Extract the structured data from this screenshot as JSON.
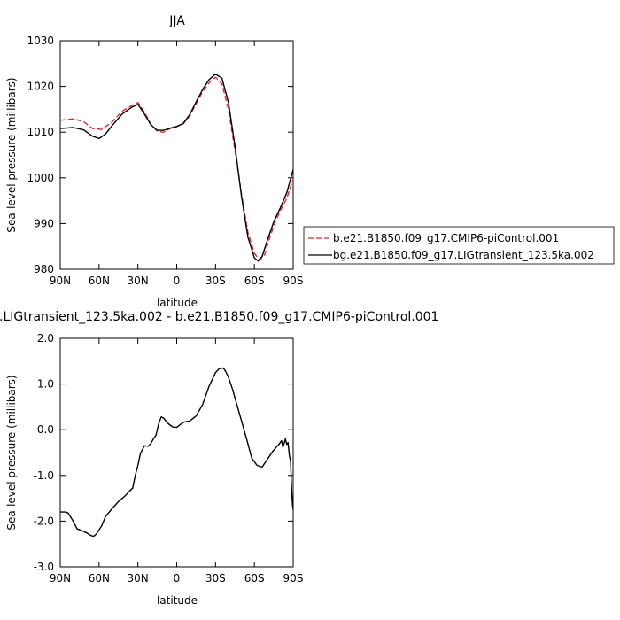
{
  "chart_data": [
    {
      "type": "line",
      "title": "JJA",
      "xlabel": "latitude",
      "ylabel": "Sea-level pressure (millibars)",
      "xlim": [
        90,
        -90
      ],
      "ylim": [
        980,
        1030
      ],
      "xticks": [
        90,
        60,
        30,
        0,
        -30,
        -60,
        -90
      ],
      "xticklabels": [
        "90N",
        "60N",
        "30N",
        "0",
        "30S",
        "60S",
        "90S"
      ],
      "yticks": [
        980,
        990,
        1000,
        1010,
        1020,
        1030
      ],
      "yticklabels": [
        "980",
        "990",
        "1000",
        "1010",
        "1020",
        "1030"
      ],
      "legend_position": "right",
      "series": [
        {
          "name": "b.e21.B1850.f09_g17.CMIP6-piControl.001",
          "color": "#e8262a",
          "dash": "dashed",
          "x": [
            90,
            80,
            72,
            65,
            58,
            50,
            42,
            35,
            30,
            25,
            20,
            15,
            10,
            5,
            0,
            -5,
            -10,
            -15,
            -20,
            -25,
            -30,
            -35,
            -40,
            -45,
            -50,
            -55,
            -60,
            -64,
            -68,
            -72,
            -76,
            -80,
            -85,
            -90
          ],
          "y": [
            1012.6,
            1012.9,
            1012.3,
            1010.8,
            1010.6,
            1012.2,
            1014.6,
            1015.8,
            1016.5,
            1014.4,
            1011.7,
            1010.2,
            1010.0,
            1010.8,
            1011.3,
            1011.8,
            1013.5,
            1016.2,
            1018.8,
            1020.8,
            1022.0,
            1020.6,
            1015.0,
            1006.0,
            996.5,
            988.0,
            983.5,
            982.0,
            983.2,
            987.0,
            990.2,
            992.8,
            995.5,
            999.8
          ]
        },
        {
          "name": "bg.e21.B1850.f09_g17.LIGtransient_123.5ka.002",
          "color": "#000000",
          "dash": "solid",
          "x": [
            90,
            80,
            72,
            65,
            60,
            55,
            50,
            42,
            35,
            30,
            25,
            20,
            15,
            10,
            5,
            0,
            -5,
            -10,
            -15,
            -20,
            -25,
            -30,
            -35,
            -40,
            -45,
            -50,
            -55,
            -60,
            -63,
            -66,
            -70,
            -75,
            -80,
            -85,
            -90
          ],
          "y": [
            1010.8,
            1011.0,
            1010.5,
            1009.1,
            1008.6,
            1009.6,
            1011.4,
            1014.0,
            1015.4,
            1016.1,
            1014.0,
            1011.6,
            1010.4,
            1010.4,
            1010.9,
            1011.2,
            1011.9,
            1013.8,
            1016.6,
            1019.3,
            1021.5,
            1022.7,
            1021.8,
            1016.5,
            1007.0,
            996.0,
            987.0,
            982.5,
            981.8,
            982.8,
            986.3,
            990.4,
            993.4,
            996.7,
            1001.8
          ]
        }
      ]
    },
    {
      "type": "line",
      "title": ".LIGtransient_123.5ka.002 - b.e21.B1850.f09_g17.CMIP6-piControl.001",
      "xlabel": "latitude",
      "ylabel": "Sea-level pressure (millibars)",
      "xlim": [
        90,
        -90
      ],
      "ylim": [
        -3.0,
        2.0
      ],
      "xticks": [
        90,
        60,
        30,
        0,
        -30,
        -60,
        -90
      ],
      "xticklabels": [
        "90N",
        "60N",
        "30N",
        "0",
        "30S",
        "60S",
        "90S"
      ],
      "yticks": [
        -3.0,
        -2.0,
        -1.0,
        0.0,
        1.0,
        2.0
      ],
      "yticklabels": [
        "-3.0",
        "-2.0",
        "-1.0",
        "0.0",
        "1.0",
        "2.0"
      ],
      "series": [
        {
          "color": "#000000",
          "dash": "solid",
          "x": [
            90,
            86,
            84,
            80,
            77,
            74,
            70,
            66,
            64,
            62,
            58,
            55,
            50,
            45,
            40,
            36,
            34,
            32,
            30,
            28,
            25,
            22,
            20,
            18,
            16,
            14,
            12,
            10,
            8,
            6,
            3,
            0,
            -3,
            -6,
            -10,
            -15,
            -20,
            -25,
            -30,
            -33,
            -36,
            -38,
            -40,
            -43,
            -46,
            -50,
            -54,
            -58,
            -62,
            -66,
            -70,
            -74,
            -77,
            -79,
            -81,
            -82,
            -83,
            -84,
            -85,
            -86,
            -87,
            -88,
            -88.5,
            -89,
            -89.5,
            -90
          ],
          "y": [
            -1.8,
            -1.8,
            -1.82,
            -2.0,
            -2.17,
            -2.2,
            -2.25,
            -2.32,
            -2.33,
            -2.28,
            -2.1,
            -1.9,
            -1.73,
            -1.57,
            -1.45,
            -1.33,
            -1.28,
            -1.0,
            -0.78,
            -0.52,
            -0.35,
            -0.36,
            -0.3,
            -0.2,
            -0.12,
            0.12,
            0.28,
            0.25,
            0.18,
            0.12,
            0.06,
            0.05,
            0.12,
            0.17,
            0.19,
            0.3,
            0.55,
            0.95,
            1.25,
            1.34,
            1.35,
            1.27,
            1.15,
            0.9,
            0.6,
            0.2,
            -0.2,
            -0.62,
            -0.78,
            -0.82,
            -0.65,
            -0.48,
            -0.38,
            -0.32,
            -0.24,
            -0.38,
            -0.3,
            -0.2,
            -0.32,
            -0.28,
            -0.55,
            -0.7,
            -1.1,
            -1.4,
            -1.65,
            -1.75
          ]
        }
      ]
    }
  ]
}
